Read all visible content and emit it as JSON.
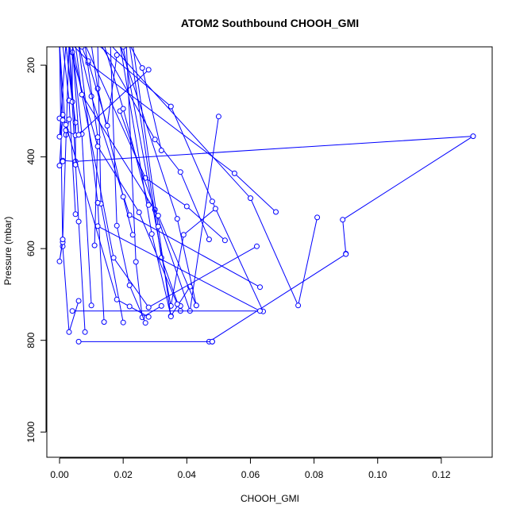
{
  "chart_data": {
    "type": "line",
    "title": "ATOM2 Southbound CHOOH_GMI",
    "xlabel": "CHOOH_GMI",
    "ylabel": "Pressure (mbar)",
    "xlim": [
      -0.004,
      0.136
    ],
    "ylim": [
      1055,
      160
    ],
    "y_reversed": true,
    "x_ticks": [
      0.0,
      0.02,
      0.04,
      0.06,
      0.08,
      0.1,
      0.12
    ],
    "x_tick_labels": [
      "0.00",
      "0.02",
      "0.04",
      "0.06",
      "0.08",
      "0.10",
      "0.12"
    ],
    "y_ticks": [
      200,
      400,
      600,
      800,
      1000
    ],
    "y_tick_labels": [
      "200",
      "400",
      "600",
      "800",
      "1000"
    ],
    "grid": false,
    "legend": "none",
    "marker": "open-circle",
    "series": [
      {
        "points": [
          [
            0.09,
            611
          ],
          [
            0.089,
            537
          ],
          [
            0.13,
            355
          ],
          [
            0.005,
            410
          ],
          [
            0.001,
            408
          ]
        ]
      },
      {
        "points": [
          [
            0.081,
            532
          ],
          [
            0.075,
            724
          ],
          [
            0.06,
            490
          ],
          [
            0.016,
            155
          ]
        ]
      },
      {
        "points": [
          [
            0.068,
            520
          ],
          [
            0.055,
            436
          ],
          [
            0.009,
            195
          ],
          [
            0.007,
            160
          ]
        ]
      },
      {
        "points": [
          [
            0.063,
            684
          ],
          [
            0.022,
            527
          ],
          [
            0.01,
            268
          ],
          [
            0.006,
            155
          ]
        ]
      },
      {
        "points": [
          [
            0.064,
            737
          ],
          [
            0.048,
            497
          ],
          [
            0.035,
            290
          ],
          [
            0.012,
            155
          ]
        ]
      },
      {
        "points": [
          [
            0.062,
            595
          ],
          [
            0.028,
            728
          ],
          [
            0.017,
            620
          ],
          [
            0.004,
            155
          ]
        ]
      },
      {
        "points": [
          [
            0.052,
            582
          ],
          [
            0.04,
            508
          ],
          [
            0.027,
            446
          ],
          [
            0.008,
            155
          ]
        ]
      },
      {
        "points": [
          [
            0.05,
            312
          ],
          [
            0.041,
            736
          ],
          [
            0.03,
            515
          ],
          [
            0.019,
            300
          ]
        ]
      },
      {
        "points": [
          [
            0.049,
            513
          ],
          [
            0.039,
            570
          ],
          [
            0.035,
            725
          ],
          [
            0.02,
            160
          ]
        ]
      },
      {
        "points": [
          [
            0.048,
            803
          ],
          [
            0.047,
            803
          ],
          [
            0.09,
            612
          ]
        ]
      },
      {
        "points": [
          [
            0.047,
            580
          ],
          [
            0.038,
            433
          ],
          [
            0.03,
            362
          ],
          [
            0.013,
            155
          ]
        ]
      },
      {
        "points": [
          [
            0.043,
            724
          ],
          [
            0.037,
            535
          ],
          [
            0.019,
            155
          ]
        ]
      },
      {
        "points": [
          [
            0.041,
            683
          ],
          [
            0.035,
            747
          ],
          [
            0.029,
            568
          ],
          [
            0.019,
            155
          ]
        ]
      },
      {
        "points": [
          [
            0.038,
            725
          ],
          [
            0.038,
            736
          ],
          [
            0.032,
            620
          ],
          [
            0.022,
            155
          ]
        ]
      },
      {
        "points": [
          [
            0.035,
            748
          ],
          [
            0.031,
            552
          ],
          [
            0.023,
            155
          ]
        ]
      },
      {
        "points": [
          [
            0.032,
            725
          ],
          [
            0.026,
            750
          ],
          [
            0.024,
            629
          ],
          [
            0.021,
            155
          ]
        ]
      },
      {
        "points": [
          [
            0.032,
            386
          ],
          [
            0.026,
            206
          ],
          [
            0.022,
            155
          ]
        ]
      },
      {
        "points": [
          [
            0.028,
            505
          ],
          [
            0.02,
            295
          ],
          [
            0.014,
            155
          ]
        ]
      },
      {
        "points": [
          [
            0.027,
            762
          ],
          [
            0.022,
            680
          ],
          [
            0.018,
            550
          ],
          [
            0.016,
            155
          ]
        ]
      },
      {
        "points": [
          [
            0.023,
            570
          ],
          [
            0.02,
            487
          ],
          [
            0.012,
            251
          ],
          [
            0.01,
            155
          ]
        ]
      },
      {
        "points": [
          [
            0.02,
            761
          ],
          [
            0.013,
            502
          ],
          [
            0.012,
            155
          ]
        ]
      },
      {
        "points": [
          [
            0.018,
            178
          ],
          [
            0.015,
            332
          ],
          [
            0.009,
            191
          ],
          [
            0.004,
            155
          ]
        ]
      },
      {
        "points": [
          [
            0.014,
            760
          ],
          [
            0.012,
            500
          ],
          [
            0.006,
            155
          ]
        ]
      },
      {
        "points": [
          [
            0.011,
            593
          ],
          [
            0.012,
            357
          ],
          [
            0.008,
            155
          ]
        ]
      },
      {
        "points": [
          [
            0.01,
            724
          ],
          [
            0.007,
            350
          ],
          [
            0.004,
            155
          ]
        ]
      },
      {
        "points": [
          [
            0.008,
            782
          ],
          [
            0.006,
            541
          ],
          [
            0.003,
            155
          ]
        ]
      },
      {
        "points": [
          [
            0.006,
            803
          ],
          [
            0.048,
            803
          ]
        ]
      },
      {
        "points": [
          [
            0.005,
            525
          ],
          [
            0.003,
            277
          ],
          [
            0.001,
            155
          ]
        ]
      },
      {
        "points": [
          [
            0.005,
            417
          ],
          [
            0.005,
            325
          ],
          [
            0.002,
            155
          ]
        ]
      },
      {
        "points": [
          [
            0.006,
            714
          ],
          [
            0.003,
            782
          ],
          [
            0.001,
            595
          ],
          [
            0.0,
            155
          ]
        ]
      },
      {
        "points": [
          [
            0.004,
            736
          ],
          [
            0.063,
            736
          ],
          [
            0.012,
            551
          ]
        ]
      },
      {
        "points": [
          [
            0.004,
            172
          ],
          [
            0.004,
            280
          ],
          [
            0.002,
            155
          ]
        ]
      },
      {
        "points": [
          [
            0.003,
            318
          ],
          [
            0.002,
            352
          ],
          [
            0.0,
            155
          ]
        ]
      },
      {
        "points": [
          [
            0.001,
            410
          ],
          [
            0.0,
            419
          ],
          [
            0.001,
            308
          ],
          [
            0.0,
            155
          ]
        ]
      },
      {
        "points": [
          [
            0.001,
            586
          ],
          [
            0.0,
            628
          ],
          [
            0.001,
            580
          ],
          [
            0.003,
            155
          ]
        ]
      },
      {
        "points": [
          [
            0.0,
            316
          ],
          [
            0.001,
            320
          ],
          [
            0.0,
            356
          ],
          [
            0.002,
            155
          ]
        ]
      },
      {
        "points": [
          [
            0.002,
            342
          ],
          [
            0.005,
            353
          ],
          [
            0.003,
            155
          ]
        ]
      },
      {
        "points": [
          [
            0.028,
            210
          ],
          [
            0.006,
            352
          ],
          [
            0.004,
            155
          ]
        ]
      },
      {
        "points": [
          [
            0.028,
            749
          ],
          [
            0.022,
            726
          ],
          [
            0.018,
            711
          ],
          [
            0.002,
            330
          ]
        ]
      },
      {
        "points": [
          [
            0.037,
            721
          ],
          [
            0.025,
            521
          ],
          [
            0.012,
            377
          ],
          [
            0.003,
            155
          ]
        ]
      },
      {
        "points": [
          [
            0.043,
            724
          ],
          [
            0.031,
            528
          ],
          [
            0.007,
            264
          ],
          [
            0.005,
            155
          ]
        ]
      }
    ]
  }
}
